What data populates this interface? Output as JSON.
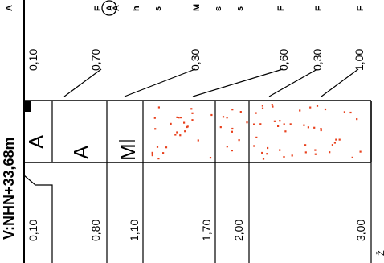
{
  "header": {
    "title": "V:NHN+33,68m",
    "note": "Ž"
  },
  "depths": [
    "0,10",
    "0,80",
    "1,10",
    "1,70",
    "2,00",
    "3,00"
  ],
  "thicknesses": [
    "0,10",
    "0,70",
    "0,30",
    "0,60",
    "0,30",
    "1,00"
  ],
  "soil_symbols": [
    "A",
    "A",
    "M"
  ],
  "descriptions": {
    "col1": "A",
    "col2": "F",
    "col3": "A",
    "col4": "A",
    "col5": "h",
    "col6": "s",
    "col7": "M",
    "col8": "s",
    "col9": "s",
    "col10": "F",
    "col11": "F",
    "col12": "F"
  },
  "colors": {
    "dots": "#e8401c",
    "lines": "#000000"
  }
}
